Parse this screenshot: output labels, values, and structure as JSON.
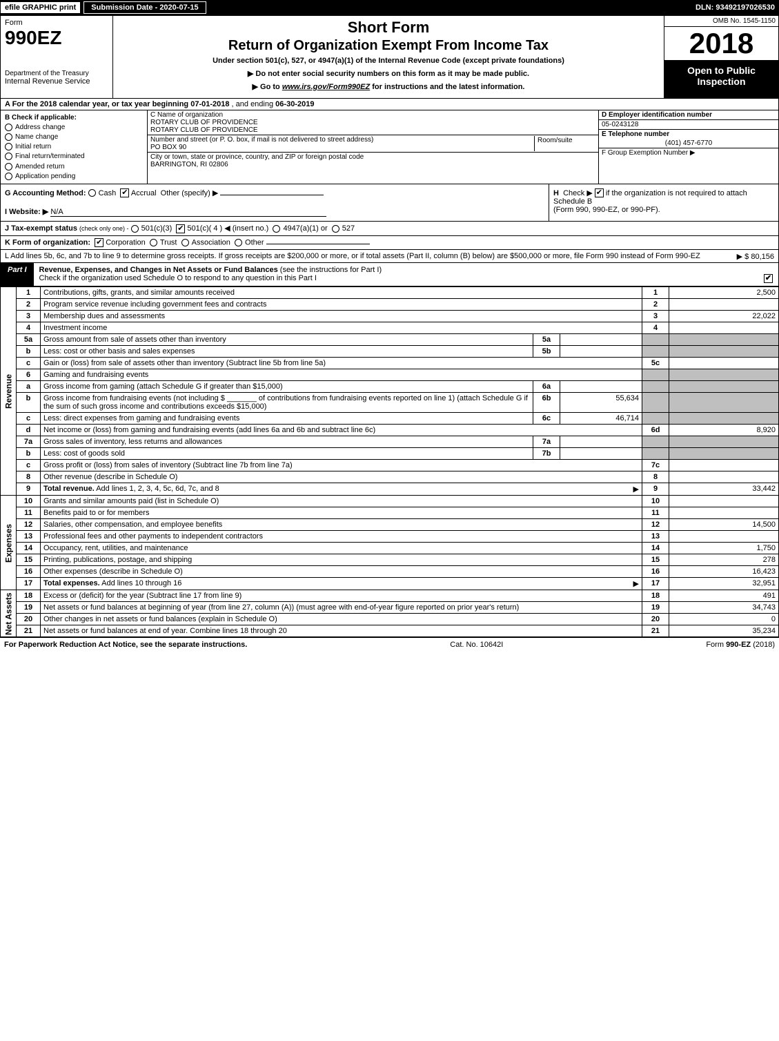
{
  "top": {
    "efile": "efile GRAPHIC print",
    "submission_label": "Submission Date - 2020-07-15",
    "dln": "DLN: 93492197026530"
  },
  "header": {
    "form_label": "Form",
    "form_number": "990EZ",
    "short_form": "Short Form",
    "return_title": "Return of Organization Exempt From Income Tax",
    "subtitle": "Under section 501(c), 527, or 4947(a)(1) of the Internal Revenue Code (except private foundations)",
    "warn1": "▶ Do not enter social security numbers on this form as it may be made public.",
    "warn2_pre": "▶ Go to ",
    "warn2_link": "www.irs.gov/Form990EZ",
    "warn2_post": " for instructions and the latest information.",
    "dept1": "Department of the Treasury",
    "dept2": "Internal Revenue Service",
    "omb": "OMB No. 1545-1150",
    "year": "2018",
    "open_public": "Open to Public Inspection"
  },
  "line_a": {
    "prefix": "A For the 2018 calendar year, or tax year beginning ",
    "begin": "07-01-2018",
    "mid": " , and ending ",
    "end": "06-30-2019"
  },
  "col_b": {
    "heading": "B Check if applicable:",
    "opts": [
      "Address change",
      "Name change",
      "Initial return",
      "Final return/terminated",
      "Amended return",
      "Application pending"
    ]
  },
  "col_c": {
    "name_label": "C Name of organization",
    "name1": "ROTARY CLUB OF PROVIDENCE",
    "name2": "ROTARY CLUB OF PROVIDENCE",
    "address_label": "Number and street (or P. O. box, if mail is not delivered to street address)",
    "room_label": "Room/suite",
    "address": "PO BOX 90",
    "city_label": "City or town, state or province, country, and ZIP or foreign postal code",
    "city": "BARRINGTON, RI  02806"
  },
  "col_d": {
    "ein_label": "D Employer identification number",
    "ein": "05-0243128",
    "tel_label": "E Telephone number",
    "tel": "(401) 457-6770",
    "group_label": "F Group Exemption Number  ▶"
  },
  "row_g": {
    "label": "G Accounting Method:",
    "cash": "Cash",
    "accrual": "Accrual",
    "other": "Other (specify) ▶",
    "website_label": "I Website: ▶",
    "website": "N/A"
  },
  "row_h": {
    "label": "H",
    "text1": "Check ▶",
    "text2": "if the organization is not required to attach Schedule B",
    "text3": "(Form 990, 990-EZ, or 990-PF)."
  },
  "row_j": {
    "label": "J Tax-exempt status",
    "note": "(check only one) -",
    "o1": "501(c)(3)",
    "o2": "501(c)( 4 ) ◀ (insert no.)",
    "o3": "4947(a)(1) or",
    "o4": "527"
  },
  "row_k": {
    "label": "K Form of organization:",
    "o1": "Corporation",
    "o2": "Trust",
    "o3": "Association",
    "o4": "Other"
  },
  "row_l": {
    "text": "L Add lines 5b, 6c, and 7b to line 9 to determine gross receipts. If gross receipts are $200,000 or more, or if total assets (Part II, column (B) below) are $500,000 or more, file Form 990 instead of Form 990-EZ",
    "arrow": "▶ $",
    "amount": "80,156"
  },
  "part1": {
    "label": "Part I",
    "title": "Revenue, Expenses, and Changes in Net Assets or Fund Balances",
    "title_note": "(see the instructions for Part I)",
    "check_line": "Check if the organization used Schedule O to respond to any question in this Part I"
  },
  "revenue_rows": [
    {
      "n": "1",
      "desc": "Contributions, gifts, grants, and similar amounts received",
      "num": "1",
      "val": "2,500"
    },
    {
      "n": "2",
      "desc": "Program service revenue including government fees and contracts",
      "num": "2",
      "val": ""
    },
    {
      "n": "3",
      "desc": "Membership dues and assessments",
      "num": "3",
      "val": "22,022"
    },
    {
      "n": "4",
      "desc": "Investment income",
      "num": "4",
      "val": ""
    },
    {
      "n": "5a",
      "desc": "Gross amount from sale of assets other than inventory",
      "sub": "5a",
      "subval": "",
      "shaded": true
    },
    {
      "n": "b",
      "desc": "Less: cost or other basis and sales expenses",
      "sub": "5b",
      "subval": "",
      "shaded": true
    },
    {
      "n": "c",
      "desc": "Gain or (loss) from sale of assets other than inventory (Subtract line 5b from line 5a)",
      "num": "5c",
      "val": ""
    },
    {
      "n": "6",
      "desc": "Gaming and fundraising events",
      "shaded": true
    },
    {
      "n": "a",
      "desc": "Gross income from gaming (attach Schedule G if greater than $15,000)",
      "sub": "6a",
      "subval": "",
      "shaded": true
    },
    {
      "n": "b",
      "desc": "Gross income from fundraising events (not including $ _______ of contributions from fundraising events reported on line 1) (attach Schedule G if the sum of such gross income and contributions exceeds $15,000)",
      "sub": "6b",
      "subval": "55,634",
      "shaded": true
    },
    {
      "n": "c",
      "desc": "Less: direct expenses from gaming and fundraising events",
      "sub": "6c",
      "subval": "46,714",
      "shaded": true
    },
    {
      "n": "d",
      "desc": "Net income or (loss) from gaming and fundraising events (add lines 6a and 6b and subtract line 6c)",
      "num": "6d",
      "val": "8,920"
    },
    {
      "n": "7a",
      "desc": "Gross sales of inventory, less returns and allowances",
      "sub": "7a",
      "subval": "",
      "shaded": true
    },
    {
      "n": "b",
      "desc": "Less: cost of goods sold",
      "sub": "7b",
      "subval": "",
      "shaded": true
    },
    {
      "n": "c",
      "desc": "Gross profit or (loss) from sales of inventory (Subtract line 7b from line 7a)",
      "num": "7c",
      "val": ""
    },
    {
      "n": "8",
      "desc": "Other revenue (describe in Schedule O)",
      "num": "8",
      "val": ""
    },
    {
      "n": "9",
      "desc": "Total revenue. Add lines 1, 2, 3, 4, 5c, 6d, 7c, and 8",
      "num": "9",
      "val": "33,442",
      "bold": true,
      "arrow": true
    }
  ],
  "expense_rows": [
    {
      "n": "10",
      "desc": "Grants and similar amounts paid (list in Schedule O)",
      "num": "10",
      "val": ""
    },
    {
      "n": "11",
      "desc": "Benefits paid to or for members",
      "num": "11",
      "val": ""
    },
    {
      "n": "12",
      "desc": "Salaries, other compensation, and employee benefits",
      "num": "12",
      "val": "14,500"
    },
    {
      "n": "13",
      "desc": "Professional fees and other payments to independent contractors",
      "num": "13",
      "val": ""
    },
    {
      "n": "14",
      "desc": "Occupancy, rent, utilities, and maintenance",
      "num": "14",
      "val": "1,750"
    },
    {
      "n": "15",
      "desc": "Printing, publications, postage, and shipping",
      "num": "15",
      "val": "278"
    },
    {
      "n": "16",
      "desc": "Other expenses (describe in Schedule O)",
      "num": "16",
      "val": "16,423"
    },
    {
      "n": "17",
      "desc": "Total expenses. Add lines 10 through 16",
      "num": "17",
      "val": "32,951",
      "bold": true,
      "arrow": true
    }
  ],
  "netassets_rows": [
    {
      "n": "18",
      "desc": "Excess or (deficit) for the year (Subtract line 17 from line 9)",
      "num": "18",
      "val": "491"
    },
    {
      "n": "19",
      "desc": "Net assets or fund balances at beginning of year (from line 27, column (A)) (must agree with end-of-year figure reported on prior year's return)",
      "num": "19",
      "val": "34,743"
    },
    {
      "n": "20",
      "desc": "Other changes in net assets or fund balances (explain in Schedule O)",
      "num": "20",
      "val": "0"
    },
    {
      "n": "21",
      "desc": "Net assets or fund balances at end of year. Combine lines 18 through 20",
      "num": "21",
      "val": "35,234"
    }
  ],
  "side_labels": {
    "revenue": "Revenue",
    "expenses": "Expenses",
    "netassets": "Net Assets"
  },
  "footer": {
    "left": "For Paperwork Reduction Act Notice, see the separate instructions.",
    "mid": "Cat. No. 10642I",
    "right_pre": "Form ",
    "right_form": "990-EZ",
    "right_post": " (2018)"
  },
  "colors": {
    "black": "#000000",
    "white": "#ffffff",
    "shaded": "#bfbfbf"
  }
}
